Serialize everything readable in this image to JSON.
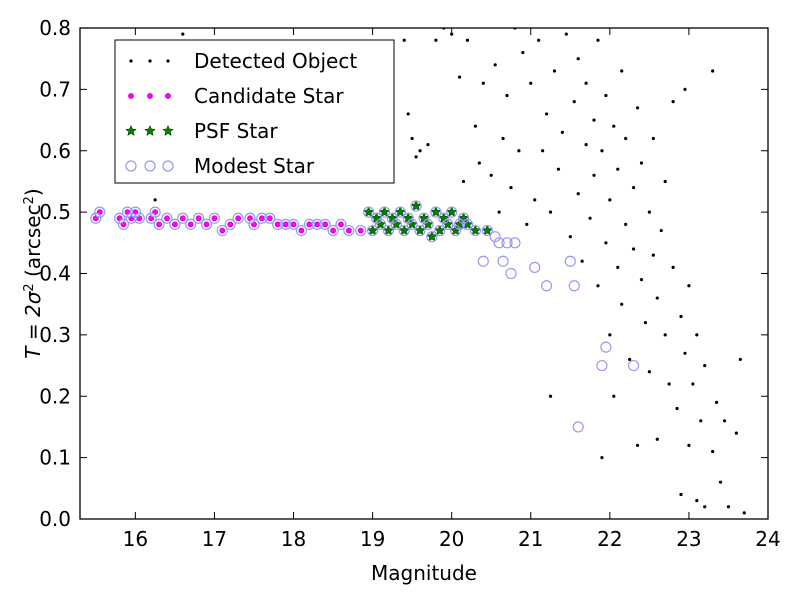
{
  "chart_data": {
    "type": "scatter",
    "xlabel": "Magnitude",
    "ylabel_main": "T = 2σ",
    "ylabel_sup": "2",
    "ylabel_unit": " (arcsec",
    "ylabel_unit_sup": "2",
    "ylabel_close": ")",
    "xlim": [
      15.3,
      24
    ],
    "ylim": [
      0.0,
      0.8
    ],
    "xticks": [
      "16",
      "17",
      "18",
      "19",
      "20",
      "21",
      "22",
      "23",
      "24"
    ],
    "yticks": [
      "0.0",
      "0.1",
      "0.2",
      "0.3",
      "0.4",
      "0.5",
      "0.6",
      "0.7",
      "0.8"
    ],
    "legend_position": "top-left",
    "series": [
      {
        "name": "Detected Object",
        "marker": "dot",
        "color": "#000000",
        "points": [
          [
            16.6,
            0.79
          ],
          [
            16.25,
            0.52
          ],
          [
            19.1,
            0.7
          ],
          [
            19.2,
            0.75
          ],
          [
            19.4,
            0.78
          ],
          [
            19.45,
            0.66
          ],
          [
            19.5,
            0.62
          ],
          [
            19.55,
            0.59
          ],
          [
            19.6,
            0.6
          ],
          [
            19.7,
            0.61
          ],
          [
            19.8,
            0.78
          ],
          [
            19.9,
            0.8
          ],
          [
            20.0,
            0.79
          ],
          [
            20.1,
            0.72
          ],
          [
            20.15,
            0.55
          ],
          [
            20.2,
            0.78
          ],
          [
            20.3,
            0.64
          ],
          [
            20.35,
            0.58
          ],
          [
            20.4,
            0.71
          ],
          [
            20.5,
            0.56
          ],
          [
            20.55,
            0.74
          ],
          [
            20.6,
            0.5
          ],
          [
            20.65,
            0.62
          ],
          [
            20.7,
            0.69
          ],
          [
            20.75,
            0.54
          ],
          [
            20.8,
            0.8
          ],
          [
            20.85,
            0.6
          ],
          [
            20.9,
            0.76
          ],
          [
            20.95,
            0.48
          ],
          [
            21.0,
            0.71
          ],
          [
            21.05,
            0.52
          ],
          [
            21.1,
            0.78
          ],
          [
            21.15,
            0.6
          ],
          [
            21.2,
            0.66
          ],
          [
            21.25,
            0.5
          ],
          [
            21.25,
            0.2
          ],
          [
            21.3,
            0.73
          ],
          [
            21.35,
            0.57
          ],
          [
            21.4,
            0.63
          ],
          [
            21.45,
            0.79
          ],
          [
            21.5,
            0.46
          ],
          [
            21.55,
            0.68
          ],
          [
            21.6,
            0.53
          ],
          [
            21.6,
            0.75
          ],
          [
            21.65,
            0.42
          ],
          [
            21.7,
            0.61
          ],
          [
            21.7,
            0.71
          ],
          [
            21.75,
            0.49
          ],
          [
            21.8,
            0.65
          ],
          [
            21.8,
            0.56
          ],
          [
            21.85,
            0.38
          ],
          [
            21.85,
            0.78
          ],
          [
            21.9,
            0.6
          ],
          [
            21.9,
            0.1
          ],
          [
            21.95,
            0.45
          ],
          [
            21.95,
            0.69
          ],
          [
            22.0,
            0.52
          ],
          [
            22.0,
            0.3
          ],
          [
            22.05,
            0.2
          ],
          [
            22.05,
            0.64
          ],
          [
            22.1,
            0.41
          ],
          [
            22.1,
            0.57
          ],
          [
            22.15,
            0.73
          ],
          [
            22.15,
            0.35
          ],
          [
            22.2,
            0.48
          ],
          [
            22.2,
            0.62
          ],
          [
            22.25,
            0.26
          ],
          [
            22.3,
            0.54
          ],
          [
            22.3,
            0.44
          ],
          [
            22.35,
            0.67
          ],
          [
            22.35,
            0.12
          ],
          [
            22.4,
            0.39
          ],
          [
            22.4,
            0.58
          ],
          [
            22.45,
            0.32
          ],
          [
            22.5,
            0.5
          ],
          [
            22.5,
            0.24
          ],
          [
            22.55,
            0.43
          ],
          [
            22.55,
            0.62
          ],
          [
            22.6,
            0.36
          ],
          [
            22.6,
            0.13
          ],
          [
            22.65,
            0.47
          ],
          [
            22.7,
            0.3
          ],
          [
            22.7,
            0.55
          ],
          [
            22.75,
            0.22
          ],
          [
            22.8,
            0.41
          ],
          [
            22.8,
            0.68
          ],
          [
            22.85,
            0.18
          ],
          [
            22.9,
            0.33
          ],
          [
            22.9,
            0.04
          ],
          [
            22.95,
            0.27
          ],
          [
            22.95,
            0.7
          ],
          [
            23.0,
            0.12
          ],
          [
            23.0,
            0.38
          ],
          [
            23.05,
            0.22
          ],
          [
            23.1,
            0.03
          ],
          [
            23.1,
            0.3
          ],
          [
            23.15,
            0.16
          ],
          [
            23.2,
            0.25
          ],
          [
            23.2,
            0.02
          ],
          [
            23.3,
            0.11
          ],
          [
            23.3,
            0.73
          ],
          [
            23.35,
            0.19
          ],
          [
            23.4,
            0.06
          ],
          [
            23.45,
            0.16
          ],
          [
            23.5,
            0.02
          ],
          [
            23.6,
            0.14
          ],
          [
            23.65,
            0.26
          ],
          [
            23.7,
            0.01
          ]
        ]
      },
      {
        "name": "Candidate Star",
        "marker": "circle-small",
        "color": "#ff00ff",
        "points": [
          [
            15.5,
            0.49
          ],
          [
            15.55,
            0.5
          ],
          [
            15.8,
            0.49
          ],
          [
            15.85,
            0.48
          ],
          [
            15.9,
            0.5
          ],
          [
            15.95,
            0.49
          ],
          [
            16.0,
            0.5
          ],
          [
            16.05,
            0.49
          ],
          [
            16.2,
            0.49
          ],
          [
            16.25,
            0.5
          ],
          [
            16.3,
            0.48
          ],
          [
            16.4,
            0.49
          ],
          [
            16.5,
            0.48
          ],
          [
            16.6,
            0.49
          ],
          [
            16.7,
            0.48
          ],
          [
            16.8,
            0.49
          ],
          [
            16.9,
            0.48
          ],
          [
            17.0,
            0.49
          ],
          [
            17.1,
            0.47
          ],
          [
            17.2,
            0.48
          ],
          [
            17.3,
            0.49
          ],
          [
            17.45,
            0.49
          ],
          [
            17.5,
            0.48
          ],
          [
            17.6,
            0.49
          ],
          [
            17.7,
            0.49
          ],
          [
            17.8,
            0.48
          ],
          [
            17.9,
            0.48
          ],
          [
            18.0,
            0.48
          ],
          [
            18.1,
            0.47
          ],
          [
            18.2,
            0.48
          ],
          [
            18.3,
            0.48
          ],
          [
            18.4,
            0.48
          ],
          [
            18.5,
            0.47
          ],
          [
            18.6,
            0.48
          ],
          [
            18.7,
            0.47
          ],
          [
            18.85,
            0.47
          ]
        ]
      },
      {
        "name": "PSF Star",
        "marker": "star",
        "color": "#008000",
        "points": [
          [
            18.95,
            0.5
          ],
          [
            19.0,
            0.47
          ],
          [
            19.05,
            0.49
          ],
          [
            19.1,
            0.48
          ],
          [
            19.15,
            0.5
          ],
          [
            19.2,
            0.47
          ],
          [
            19.25,
            0.49
          ],
          [
            19.3,
            0.48
          ],
          [
            19.35,
            0.5
          ],
          [
            19.4,
            0.47
          ],
          [
            19.45,
            0.49
          ],
          [
            19.5,
            0.48
          ],
          [
            19.55,
            0.51
          ],
          [
            19.6,
            0.47
          ],
          [
            19.65,
            0.49
          ],
          [
            19.7,
            0.48
          ],
          [
            19.75,
            0.46
          ],
          [
            19.8,
            0.5
          ],
          [
            19.85,
            0.47
          ],
          [
            19.9,
            0.49
          ],
          [
            19.95,
            0.48
          ],
          [
            20.0,
            0.5
          ],
          [
            20.05,
            0.47
          ],
          [
            20.1,
            0.48
          ],
          [
            20.15,
            0.49
          ],
          [
            20.2,
            0.48
          ],
          [
            20.3,
            0.47
          ],
          [
            20.45,
            0.47
          ]
        ]
      },
      {
        "name": "Modest Star",
        "marker": "circle-open",
        "color": "#9999ee",
        "points": [
          [
            20.4,
            0.42
          ],
          [
            20.55,
            0.46
          ],
          [
            20.6,
            0.45
          ],
          [
            20.65,
            0.42
          ],
          [
            20.7,
            0.45
          ],
          [
            20.75,
            0.4
          ],
          [
            20.8,
            0.45
          ],
          [
            21.05,
            0.41
          ],
          [
            21.2,
            0.38
          ],
          [
            21.5,
            0.42
          ],
          [
            21.55,
            0.38
          ],
          [
            21.6,
            0.15
          ],
          [
            21.9,
            0.25
          ],
          [
            21.95,
            0.28
          ],
          [
            22.3,
            0.25
          ]
        ]
      }
    ]
  }
}
